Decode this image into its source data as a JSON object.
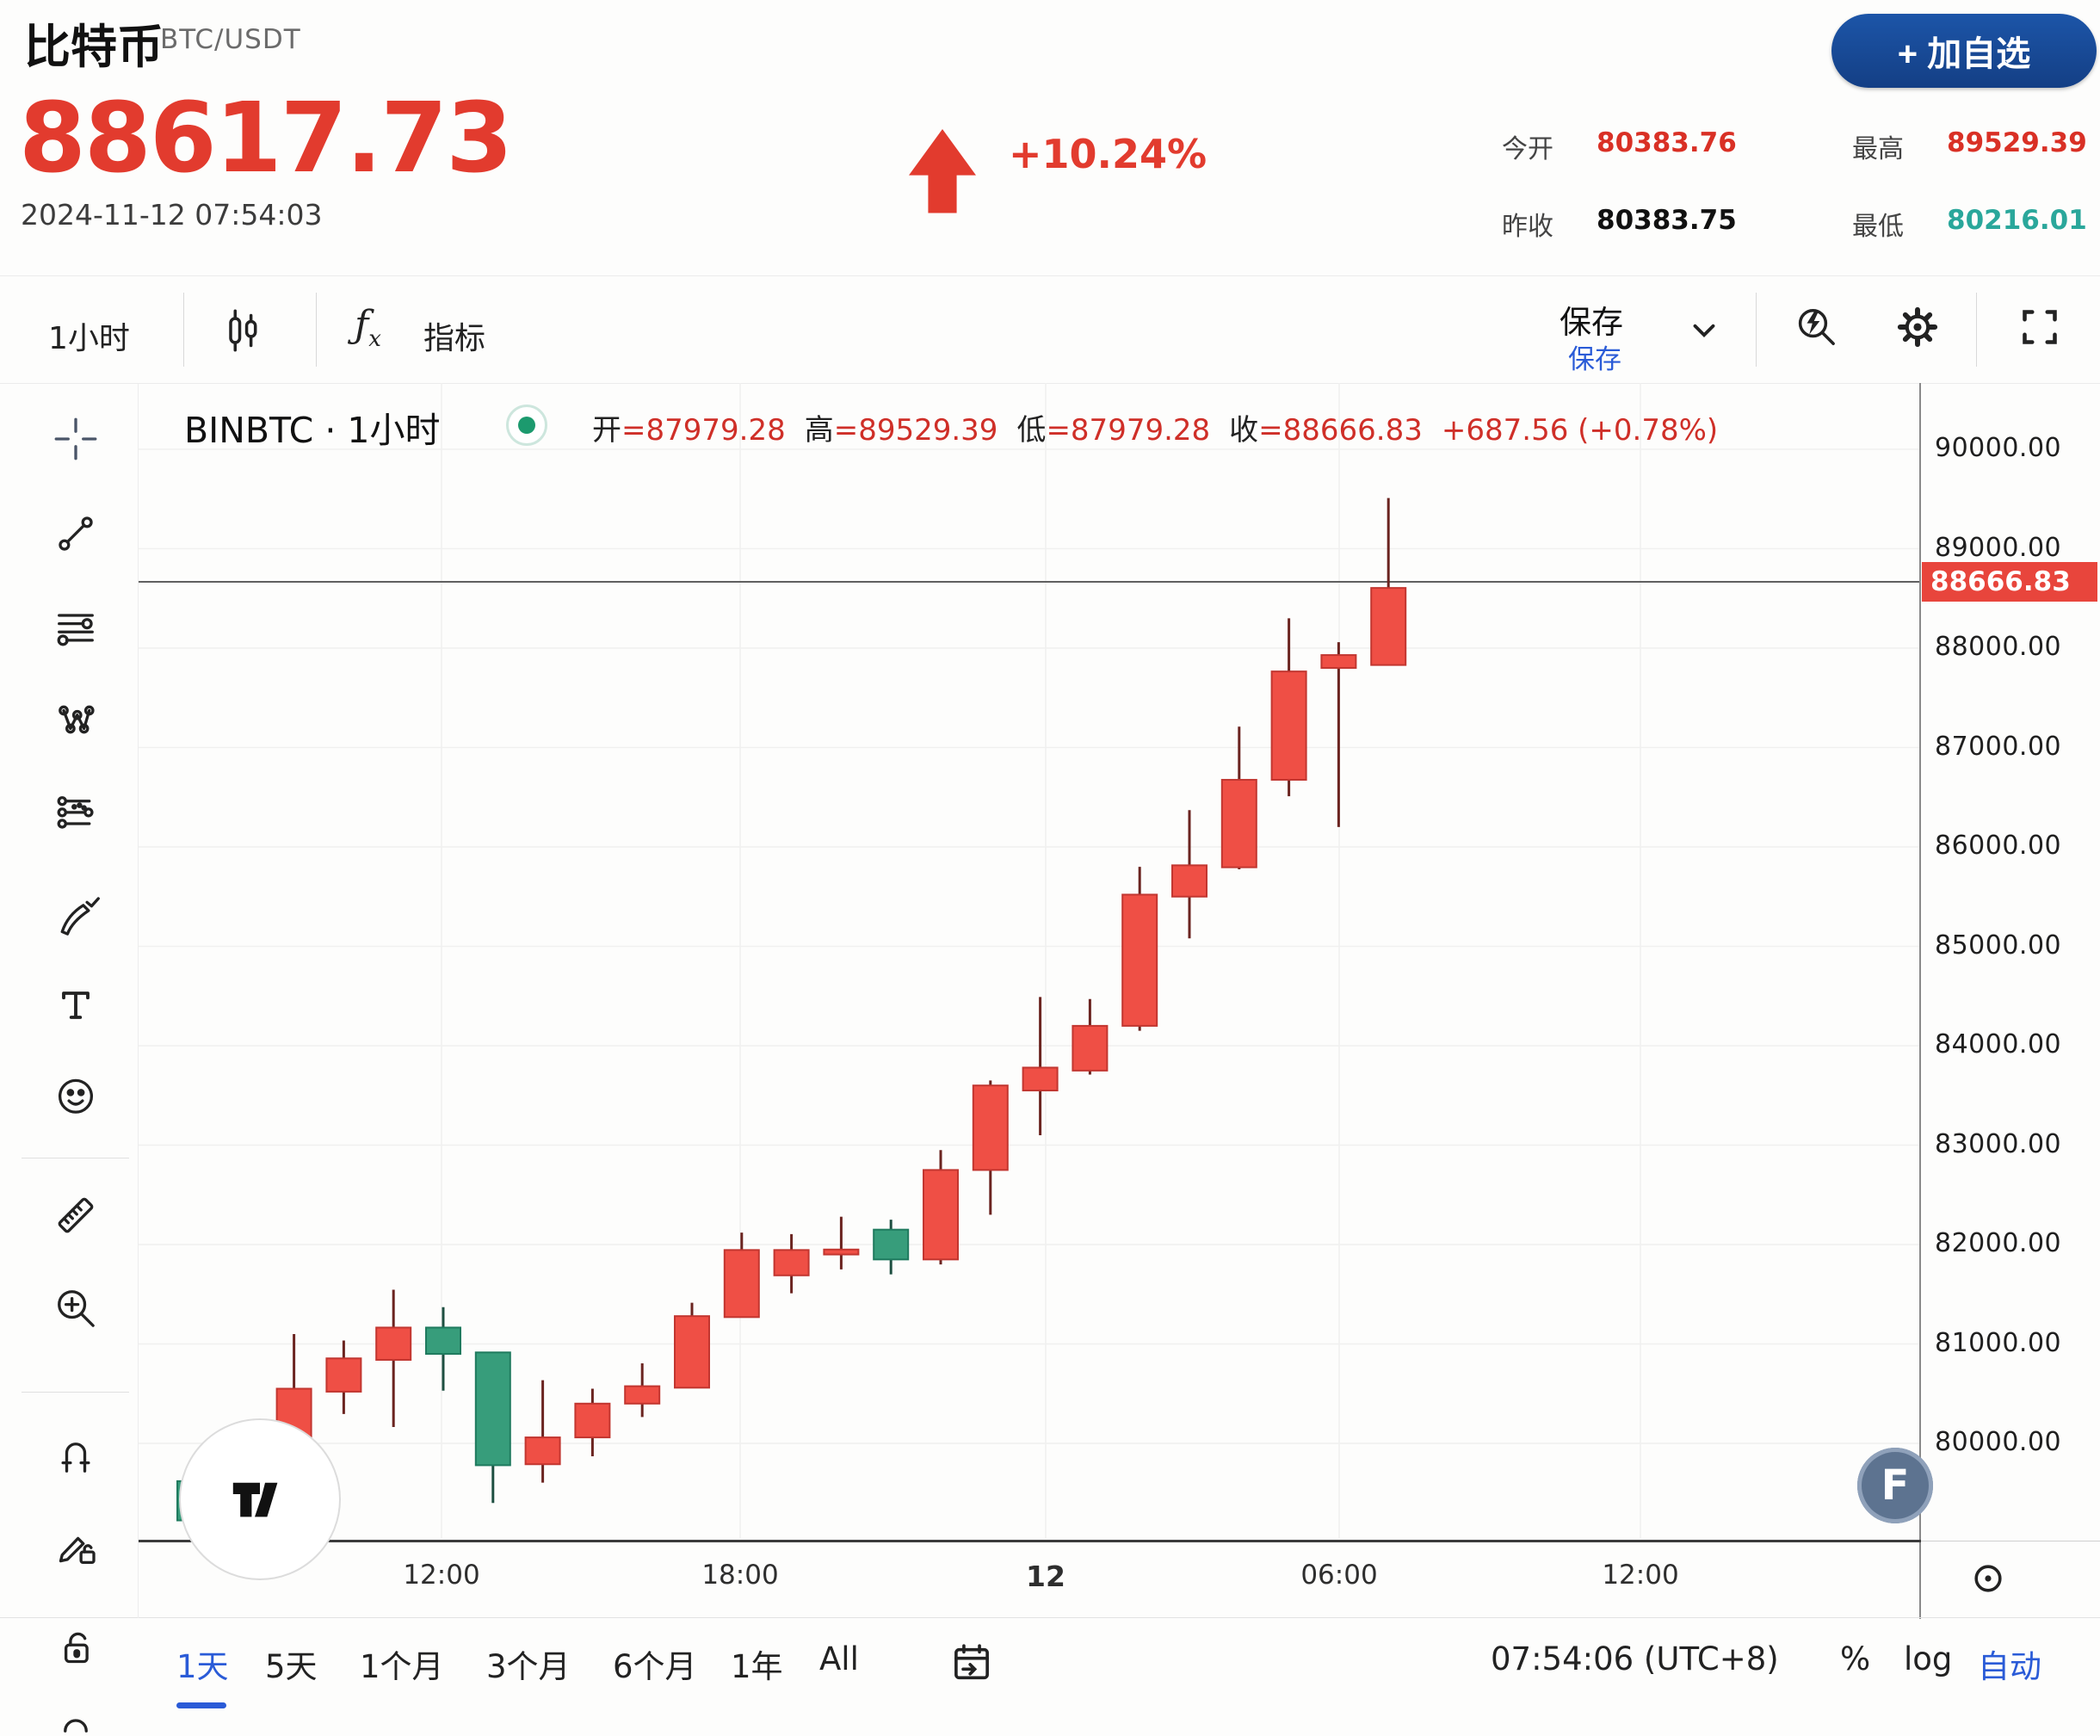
{
  "header": {
    "symbol": "比特币",
    "pair": "BTC/USDT",
    "price": "88617.73",
    "change": "+10.24%",
    "datetime": "2024-11-12 07:54:03",
    "watchlist_label": "+ 加自选",
    "stats": [
      {
        "label": "今开",
        "value": "80383.76",
        "color": "red"
      },
      {
        "label": "最高",
        "value": "89529.39",
        "color": "red"
      },
      {
        "label": "昨收",
        "value": "80383.75",
        "color": "dark"
      },
      {
        "label": "最低",
        "value": "80216.01",
        "color": "teal"
      }
    ]
  },
  "toolbar": {
    "interval": "1小时",
    "fx_label": "ƒ",
    "fx_sub": "x",
    "indicator_label": "指标",
    "save_label": "保存",
    "save_label_ghost": "保存"
  },
  "legend": {
    "series": "BINBTC · 1小时",
    "items": [
      {
        "label": "开",
        "value": "=87979.28"
      },
      {
        "label": "高",
        "value": "=89529.39"
      },
      {
        "label": "低",
        "value": "=87979.28"
      },
      {
        "label": "收",
        "value": "=88666.83"
      }
    ],
    "change": "+687.56 (+0.78%)"
  },
  "chart_data": {
    "type": "candlestick",
    "title": "BINBTC 1小时 K线",
    "interval": "1小时",
    "y_ticks": [
      {
        "label": "90000.00",
        "value": 90000
      },
      {
        "label": "89000.00",
        "value": 89000
      },
      {
        "label": "88000.00",
        "value": 88000
      },
      {
        "label": "87000.00",
        "value": 87000
      },
      {
        "label": "86000.00",
        "value": 86000
      },
      {
        "label": "85000.00",
        "value": 85000
      },
      {
        "label": "84000.00",
        "value": 84000
      },
      {
        "label": "83000.00",
        "value": 83000
      },
      {
        "label": "82000.00",
        "value": 82000
      },
      {
        "label": "81000.00",
        "value": 81000
      },
      {
        "label": "80000.00",
        "value": 80000
      }
    ],
    "y_range": [
      79000,
      90670
    ],
    "x_labels": [
      "12:00",
      "18:00",
      "12",
      "06:00",
      "12:00"
    ],
    "current_price": 88666.83,
    "price_badge": "88666.83",
    "grid": true,
    "candles_ohlc_dir": [
      [
        79620,
        79800,
        78650,
        79225,
        "down"
      ],
      [
        79210,
        79920,
        79060,
        79565,
        "up"
      ],
      [
        79545,
        81100,
        79265,
        80550,
        "up"
      ],
      [
        80520,
        81035,
        80295,
        80855,
        "up"
      ],
      [
        80840,
        81545,
        80165,
        81165,
        "up"
      ],
      [
        81165,
        81370,
        80530,
        80900,
        "down"
      ],
      [
        80915,
        80920,
        79400,
        79780,
        "down"
      ],
      [
        79790,
        80635,
        79605,
        80060,
        "up"
      ],
      [
        80060,
        80550,
        79870,
        80400,
        "up"
      ],
      [
        80400,
        80805,
        80265,
        80575,
        "up"
      ],
      [
        80560,
        81415,
        80560,
        81280,
        "up"
      ],
      [
        81270,
        82120,
        81270,
        81945,
        "up"
      ],
      [
        81690,
        82105,
        81510,
        81945,
        "up"
      ],
      [
        81900,
        82280,
        81750,
        81950,
        "up"
      ],
      [
        82150,
        82250,
        81700,
        81850,
        "down"
      ],
      [
        81850,
        82950,
        81800,
        82750,
        "up"
      ],
      [
        82750,
        83650,
        82300,
        83600,
        "up"
      ],
      [
        83550,
        84490,
        83100,
        83780,
        "up"
      ],
      [
        83750,
        84470,
        83710,
        84200,
        "up"
      ],
      [
        84200,
        85800,
        84150,
        85520,
        "up"
      ],
      [
        85500,
        86370,
        85080,
        85815,
        "up"
      ],
      [
        85795,
        87210,
        85775,
        86675,
        "up"
      ],
      [
        86675,
        88300,
        86510,
        87765,
        "up"
      ],
      [
        87800,
        88060,
        86200,
        87930,
        "up"
      ],
      [
        87830,
        89510,
        87830,
        88605,
        "up"
      ]
    ]
  },
  "sidebar": {
    "tools": [
      "crosshair",
      "trend-line",
      "fib-retracement",
      "xabcd-pattern",
      "forecast",
      "brush",
      "text",
      "emoji",
      "ruler",
      "zoom-in",
      "magnet",
      "draw-lock",
      "lock",
      "more-partial"
    ]
  },
  "bottom": {
    "ranges": [
      "1天",
      "5天",
      "1个月",
      "3个月",
      "6个月",
      "1年",
      "All"
    ],
    "active_range": "1天",
    "clock": "07:54:06 (UTC+8)",
    "percent_label": "%",
    "log_label": "log",
    "auto_label": "自动"
  },
  "watermarks": {
    "tv": "TV",
    "f": "F"
  },
  "colors": {
    "price_red": "#e23b2e",
    "stat_red": "#d93025",
    "stat_teal": "#2aa79b",
    "stat_dark": "#111111",
    "up_fill": "#ef4f45",
    "up_border": "#c23630",
    "up_wick": "#6b2420",
    "down_fill": "#379d7b",
    "down_border": "#1f7a5e",
    "down_wick": "#1e4f41",
    "grid": "#f0f0ef",
    "price_line": "#4a4a4a",
    "badge_bg": "#e8453c",
    "accent_blue": "#17489c",
    "link_blue": "#2a5bd7"
  }
}
